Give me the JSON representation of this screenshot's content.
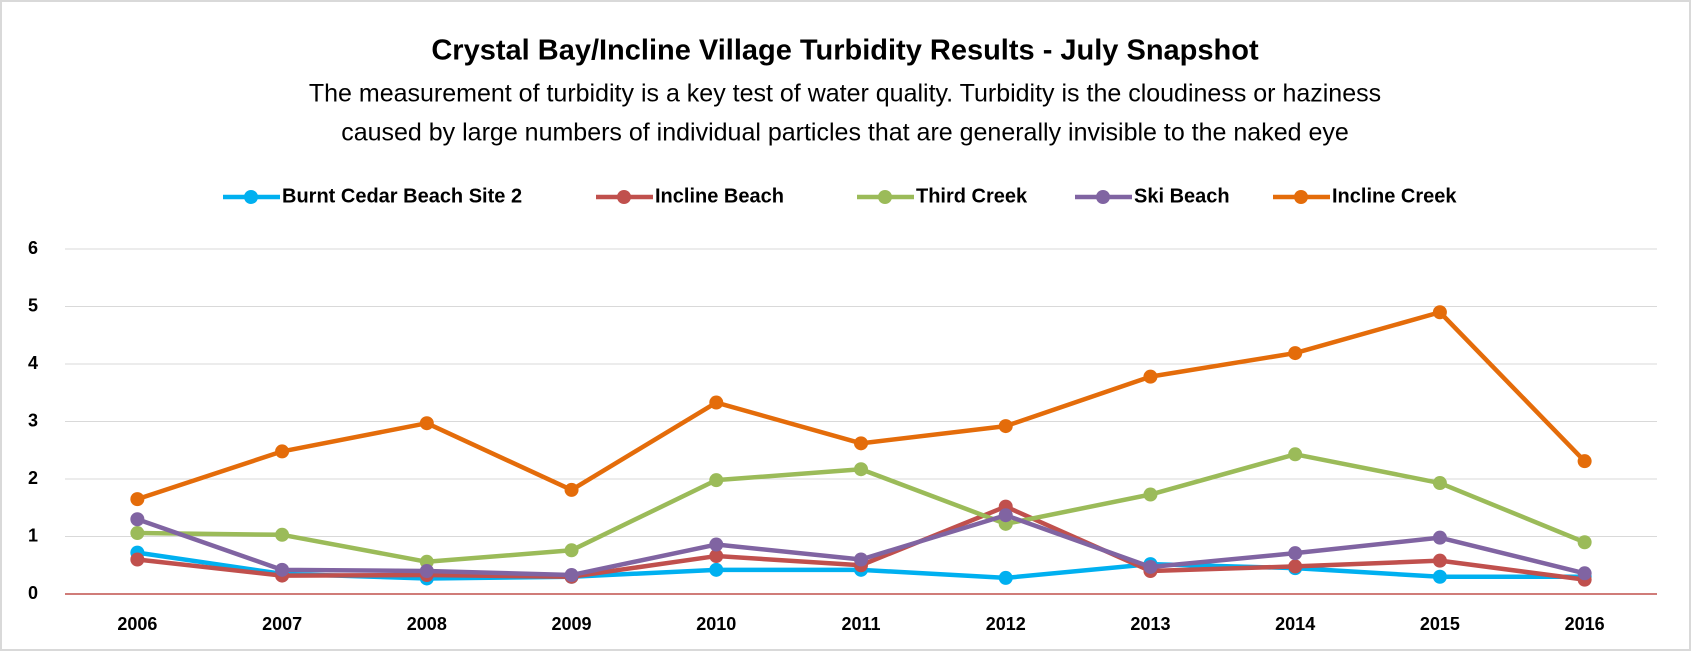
{
  "chart_data": {
    "type": "line",
    "title": "Crystal Bay/Incline Village Turbidity Results - July Snapshot",
    "subtitle": [
      "The measurement of turbidity is a key test of water quality. Turbidity is the cloudiness or haziness",
      "caused by large numbers of individual particles that are generally invisible to the naked eye"
    ],
    "categories": [
      "2006",
      "2007",
      "2008",
      "2009",
      "2010",
      "2011",
      "2012",
      "2013",
      "2014",
      "2015",
      "2016"
    ],
    "series": [
      {
        "name": "Burnt Cedar Beach Site 2",
        "color": "#00b0f0",
        "values": [
          0.72,
          0.35,
          0.27,
          0.3,
          0.42,
          0.42,
          0.28,
          0.52,
          0.45,
          0.3,
          0.3
        ]
      },
      {
        "name": "Incline Beach",
        "color": "#c0504d",
        "values": [
          0.6,
          0.32,
          0.33,
          0.3,
          0.66,
          0.5,
          1.52,
          0.4,
          0.48,
          0.58,
          0.25
        ]
      },
      {
        "name": "Third Creek",
        "color": "#9bbb59",
        "values": [
          1.06,
          1.03,
          0.56,
          0.76,
          1.98,
          2.17,
          1.22,
          1.73,
          2.43,
          1.93,
          0.9
        ]
      },
      {
        "name": "Ski Beach",
        "color": "#8064a2",
        "values": [
          1.3,
          0.42,
          0.4,
          0.33,
          0.86,
          0.6,
          1.37,
          0.47,
          0.71,
          0.98,
          0.36
        ]
      },
      {
        "name": "Incline Creek",
        "color": "#e46c0a",
        "values": [
          1.65,
          2.48,
          2.97,
          1.81,
          3.33,
          2.62,
          2.92,
          3.78,
          4.19,
          4.9,
          2.31
        ]
      }
    ],
    "ylim": [
      0,
      6
    ],
    "yticks": [
      0,
      1,
      2,
      3,
      4,
      5,
      6
    ],
    "grid": true,
    "legend": "top"
  }
}
